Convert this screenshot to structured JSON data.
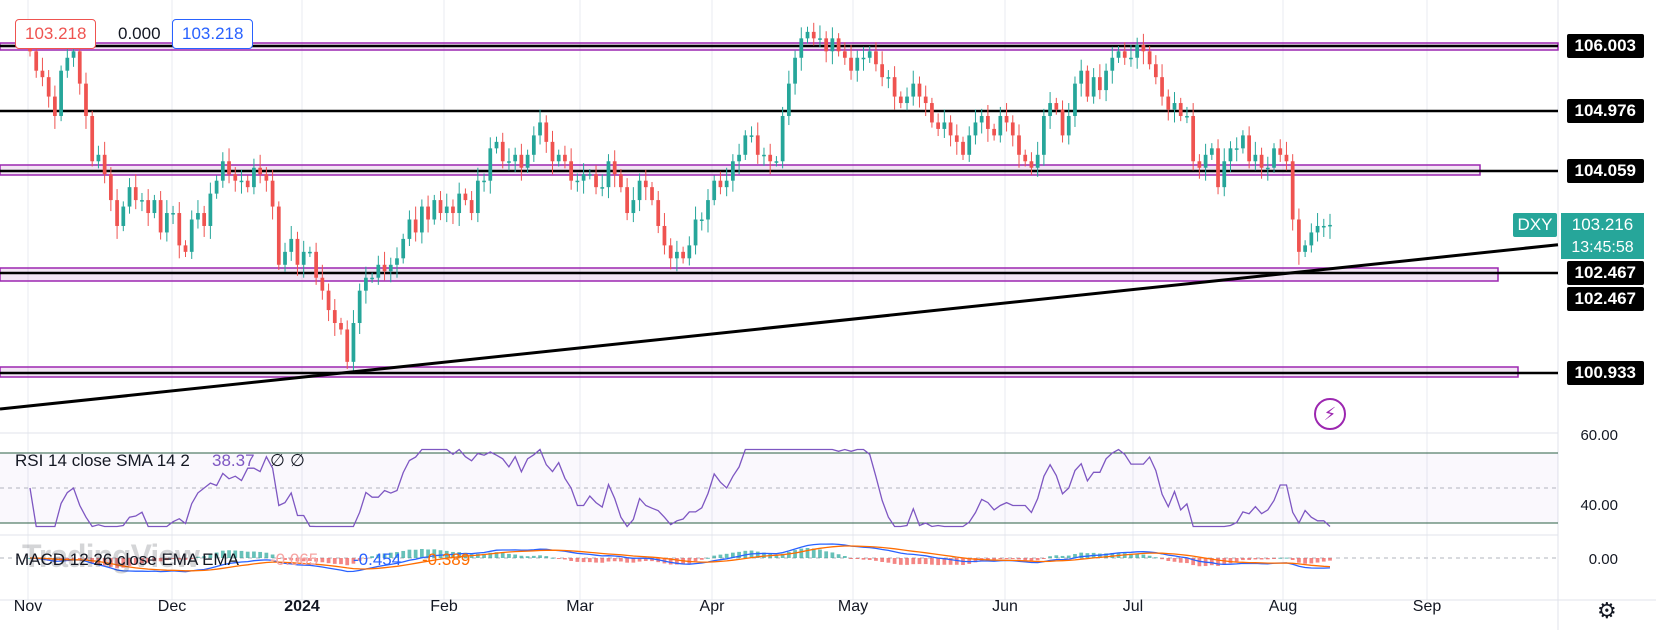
{
  "header": {
    "open_value": "103.218",
    "change_value": "0.000",
    "close_value": "103.218"
  },
  "symbol": {
    "ticker": "DXY",
    "last_price": "103.216",
    "countdown": "13:45:58"
  },
  "price_levels": [
    {
      "label": "106.003",
      "style": "black"
    },
    {
      "label": "104.976",
      "style": "black"
    },
    {
      "label": "104.059",
      "style": "black"
    },
    {
      "label": "102.467",
      "style": "black"
    },
    {
      "label": "102.467",
      "style": "black"
    },
    {
      "label": "100.933",
      "style": "black"
    }
  ],
  "time_axis": [
    "Nov",
    "Dec",
    "2024",
    "Feb",
    "Mar",
    "Apr",
    "May",
    "Jun",
    "Jul",
    "Aug",
    "Sep"
  ],
  "rsi": {
    "label": "RSI 14 close SMA 14 2",
    "value": "38.37",
    "extra1": "∅",
    "extra2": "∅",
    "ticks": [
      "60.00",
      "40.00"
    ]
  },
  "macd": {
    "label": "MACD 12 26 close EMA EMA",
    "hist": "-0.065",
    "macd": "-0.454",
    "signal": "-0.389",
    "tick": "0.00",
    "watermark": "TradingView"
  },
  "colors": {
    "up": "#26a69a",
    "down": "#ef5350",
    "zone": "#9c27b0",
    "rsi_line": "#7e57c2",
    "macd_line": "#2962ff",
    "signal_line": "#ff6d00",
    "teal": "#26a69a"
  },
  "chart_data": {
    "type": "candlestick",
    "symbol": "DXY",
    "x_axis": [
      "Nov",
      "Dec",
      "2024",
      "Feb",
      "Mar",
      "Apr",
      "May",
      "Jun",
      "Jul",
      "Aug",
      "Sep"
    ],
    "y_range": [
      100.0,
      106.6
    ],
    "horizontal_levels": [
      106.003,
      104.976,
      104.059,
      102.467,
      100.933
    ],
    "trendline_from": [
      "Nov",
      100.37
    ],
    "trendline_to": [
      "Sep",
      102.91
    ],
    "closes": [
      105.9,
      105.6,
      105.5,
      105.2,
      104.9,
      105.6,
      105.8,
      105.9,
      105.4,
      104.9,
      104.2,
      104.3,
      104.0,
      103.6,
      103.2,
      103.5,
      103.8,
      103.6,
      103.6,
      103.4,
      103.6,
      103.1,
      103.4,
      103.4,
      102.9,
      102.8,
      103.3,
      103.4,
      103.2,
      103.7,
      103.9,
      104.2,
      104.0,
      103.9,
      103.9,
      103.8,
      104.1,
      104.0,
      103.9,
      103.5,
      102.6,
      102.8,
      103.0,
      102.6,
      102.8,
      102.8,
      102.4,
      102.2,
      101.9,
      101.7,
      101.6,
      101.1,
      101.7,
      102.2,
      102.4,
      102.4,
      102.6,
      102.5,
      102.6,
      102.7,
      103.0,
      103.3,
      103.1,
      103.5,
      103.3,
      103.6,
      103.4,
      103.5,
      103.4,
      103.7,
      103.6,
      103.4,
      103.9,
      103.9,
      104.4,
      104.5,
      104.2,
      104.2,
      104.3,
      104.1,
      104.3,
      104.6,
      104.8,
      104.5,
      104.2,
      104.3,
      104.2,
      103.9,
      103.9,
      104.0,
      104.0,
      103.8,
      103.8,
      104.2,
      104.0,
      103.8,
      103.4,
      103.6,
      103.9,
      103.8,
      103.6,
      103.2,
      102.9,
      102.7,
      102.8,
      102.7,
      102.9,
      103.3,
      103.3,
      103.6,
      103.9,
      103.8,
      103.9,
      104.2,
      104.3,
      104.6,
      104.6,
      104.3,
      104.3,
      104.2,
      104.2,
      104.9,
      105.4,
      105.8,
      106.1,
      106.2,
      106.1,
      106.1,
      105.9,
      106.1,
      105.9,
      105.8,
      105.6,
      105.8,
      105.8,
      105.9,
      105.7,
      105.5,
      105.5,
      105.2,
      105.1,
      105.2,
      105.4,
      105.2,
      105.1,
      104.8,
      104.7,
      104.8,
      104.6,
      104.5,
      104.3,
      104.6,
      104.8,
      104.9,
      104.7,
      104.6,
      104.9,
      104.8,
      104.6,
      104.3,
      104.2,
      104.1,
      104.3,
      104.9,
      105.1,
      105.0,
      104.6,
      104.9,
      105.4,
      105.6,
      105.2,
      105.5,
      105.3,
      105.6,
      105.8,
      105.9,
      105.8,
      105.8,
      106.0,
      105.9,
      105.7,
      105.5,
      105.2,
      105.0,
      105.1,
      104.9,
      104.9,
      104.2,
      104.1,
      104.3,
      104.4,
      103.8,
      104.2,
      104.4,
      104.4,
      104.6,
      104.2,
      104.3,
      104.1,
      104.1,
      104.4,
      104.3,
      104.2,
      103.3,
      102.8,
      102.9,
      103.1,
      103.2,
      103.2,
      103.216
    ]
  }
}
